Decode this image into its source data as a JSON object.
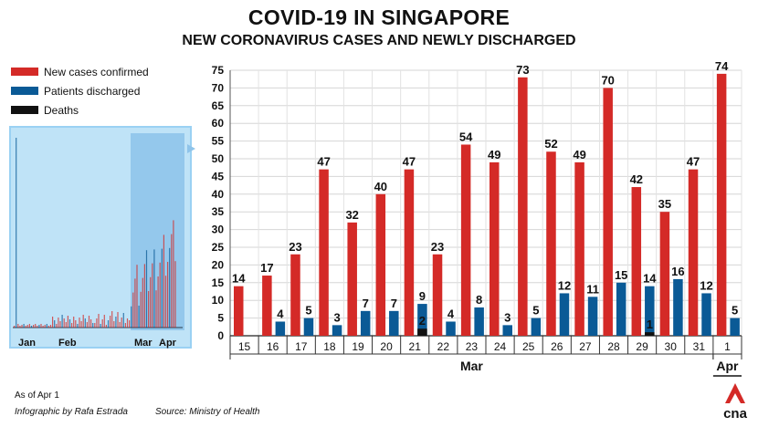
{
  "title": "COVID-19 IN SINGAPORE",
  "subtitle": "NEW CORONAVIRUS CASES AND NEWLY DISCHARGED",
  "colors": {
    "new": "#d42a27",
    "discharged": "#0a5a96",
    "deaths": "#111111",
    "overview_bg": "#bfe3f7",
    "overview_highlight": "#8fc4ea",
    "overview_frame": "#9ad1f3"
  },
  "legend": [
    {
      "label": "New cases confirmed",
      "color": "#d42a27"
    },
    {
      "label": "Patients discharged",
      "color": "#0a5a96"
    },
    {
      "label": "Deaths",
      "color": "#111111"
    }
  ],
  "footer": {
    "as_of": "As of Apr 1",
    "credit": "Infographic by Rafa Estrada",
    "source": "Source: Ministry of Health"
  },
  "logo_text": "cna",
  "overview": {
    "months": [
      "Jan",
      "Feb",
      "Mar",
      "Apr"
    ]
  },
  "chart_data": {
    "type": "bar",
    "title": "COVID-19 IN SINGAPORE",
    "subtitle": "NEW CORONAVIRUS CASES AND NEWLY DISCHARGED",
    "ylim": [
      0,
      75
    ],
    "yticks": [
      0,
      5,
      10,
      15,
      20,
      25,
      30,
      35,
      40,
      45,
      50,
      55,
      60,
      65,
      70,
      75
    ],
    "categories": [
      "15",
      "16",
      "17",
      "18",
      "19",
      "20",
      "21",
      "22",
      "23",
      "24",
      "25",
      "26",
      "27",
      "28",
      "29",
      "30",
      "31",
      "1"
    ],
    "month_labels": [
      {
        "label": "Mar",
        "from": 0,
        "to": 16
      },
      {
        "label": "Apr",
        "from": 17,
        "to": 17
      }
    ],
    "series": [
      {
        "name": "New cases confirmed",
        "color": "#d42a27",
        "values": [
          14,
          17,
          23,
          47,
          32,
          40,
          47,
          23,
          54,
          49,
          73,
          52,
          49,
          70,
          42,
          35,
          47,
          74
        ]
      },
      {
        "name": "Patients discharged",
        "color": "#0a5a96",
        "values": [
          null,
          4,
          5,
          3,
          7,
          7,
          9,
          4,
          8,
          3,
          5,
          12,
          11,
          15,
          14,
          16,
          12,
          5
        ]
      },
      {
        "name": "Deaths",
        "color": "#111111",
        "values": [
          null,
          null,
          null,
          null,
          null,
          null,
          2,
          null,
          null,
          null,
          null,
          null,
          null,
          null,
          1,
          null,
          null,
          null
        ]
      }
    ],
    "grid": true,
    "legend_position": "top-left"
  }
}
